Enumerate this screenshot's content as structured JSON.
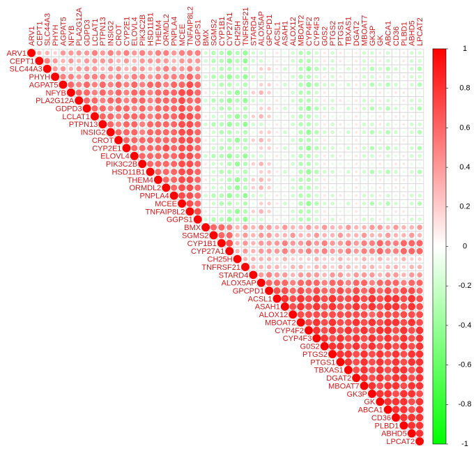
{
  "chart_data": {
    "type": "corrplot",
    "variables": [
      "ARV1",
      "CEPT1",
      "SLC44A3",
      "PHYH",
      "AGPAT5",
      "NFYB",
      "PLA2G12A",
      "GDPD3",
      "LCLAT1",
      "PTPN13",
      "INSIG2",
      "CROT",
      "CYP2E1",
      "ELOVL4",
      "PIK3C2B",
      "HSD11B1",
      "THEM4",
      "ORMDL2",
      "PNPLA4",
      "MCEE",
      "TNFAIP8L2",
      "GGPS1",
      "BMX",
      "SGMS2",
      "CYP1B1",
      "CYP27A1",
      "CH25H",
      "TNFRSF21",
      "STARD4",
      "ALOX5AP",
      "GPCPD1",
      "ACSL1",
      "ASAH1",
      "ALOX12",
      "MBOAT2",
      "CYP4F2",
      "CYP4F3",
      "G0S2",
      "PTGS2",
      "PTGS1",
      "TBXAS1",
      "DGAT2",
      "MBOAT7",
      "GK3P",
      "GK",
      "ABCA1",
      "CD36",
      "PLBD1",
      "ABHD5",
      "LPCAT2"
    ],
    "matrix": [
      [
        1,
        0.3,
        0.3,
        0.2,
        0.4,
        0.4,
        0.4,
        0.4,
        0.5,
        0.4,
        0.5,
        0.4,
        0.5,
        0.4,
        0.5,
        0.4,
        0.5,
        0.5,
        0.4,
        0.5,
        0.5,
        0.5,
        -0.2,
        -0.3,
        -0.3,
        -0.4,
        -0.3,
        -0.4,
        -0.2,
        -0.2,
        -0.1,
        0.1,
        -0.1,
        -0.2,
        -0.3,
        -0.3,
        -0.2,
        0.1,
        -0.2,
        0.1,
        -0.1,
        0.1,
        -0.2,
        -0.2,
        0.1,
        -0.2,
        -0.1,
        0.1,
        -0.2,
        -0.2
      ],
      [
        1,
        0.5,
        0.4,
        0.3,
        0.4,
        0.3,
        0.4,
        0.4,
        0.4,
        0.4,
        0.3,
        0.4,
        0.3,
        0.4,
        0.4,
        0.4,
        0.4,
        0.3,
        0.4,
        0.4,
        0.4,
        -0.2,
        -0.3,
        -0.3,
        -0.4,
        -0.3,
        -0.4,
        -0.2,
        -0.2,
        -0.1,
        0.1,
        -0.1,
        -0.2,
        -0.3,
        -0.3,
        -0.2,
        0.1,
        -0.2,
        0.1,
        -0.1,
        0.1,
        -0.2,
        -0.2,
        0.1,
        -0.2,
        -0.1,
        0.1,
        -0.2,
        -0.2
      ],
      [
        1,
        0.4,
        0.4,
        0.3,
        0.4,
        0.4,
        0.4,
        0.3,
        0.4,
        0.4,
        0.3,
        0.4,
        0.4,
        0.3,
        0.4,
        0.5,
        0.4,
        0.4,
        0.5,
        0.4,
        -0.1,
        -0.2,
        -0.3,
        -0.3,
        -0.2,
        -0.3,
        -0.1,
        0.2,
        0.2,
        0.1,
        -0.2,
        -0.1,
        -0.3,
        -0.4,
        -0.3,
        -0.2,
        -0.2,
        -0.1,
        -0.2,
        0.1,
        -0.2,
        -0.3,
        -0.2,
        -0.3,
        -0.2,
        -0.1,
        -0.2,
        -0.3
      ],
      [
        1,
        0.5,
        0.5,
        0.4,
        0.5,
        0.5,
        0.5,
        0.4,
        0.5,
        0.4,
        0.5,
        0.5,
        0.4,
        0.5,
        0.5,
        0.5,
        0.5,
        0.6,
        0.5,
        -0.2,
        -0.3,
        -0.3,
        -0.4,
        -0.3,
        -0.4,
        -0.2,
        -0.2,
        -0.1,
        0.1,
        -0.1,
        -0.2,
        -0.3,
        -0.3,
        -0.2,
        0.1,
        -0.2,
        0.1,
        -0.1,
        0.1,
        -0.2,
        -0.2,
        0.1,
        -0.2,
        -0.1,
        0.1,
        -0.2,
        -0.2
      ],
      [
        1,
        0.6,
        0.5,
        0.6,
        0.5,
        0.6,
        0.5,
        0.6,
        0.5,
        0.6,
        0.5,
        0.6,
        0.6,
        0.5,
        0.6,
        0.6,
        0.7,
        0.6,
        -0.1,
        -0.2,
        -0.3,
        -0.3,
        -0.2,
        -0.3,
        -0.1,
        0.2,
        0.2,
        0.1,
        -0.2,
        -0.1,
        -0.3,
        -0.4,
        -0.3,
        -0.2,
        -0.2,
        -0.1,
        -0.2,
        0.1,
        -0.2,
        -0.3,
        -0.2,
        -0.3,
        -0.2,
        -0.1,
        -0.2,
        -0.3
      ],
      [
        1,
        0.6,
        0.6,
        0.5,
        0.6,
        0.5,
        0.6,
        0.5,
        0.6,
        0.6,
        0.5,
        0.6,
        0.6,
        0.6,
        0.7,
        0.7,
        0.6,
        0.1,
        -0.2,
        -0.2,
        -0.3,
        -0.4,
        -0.3,
        0.2,
        0.3,
        0.2,
        -0.1,
        -0.1,
        -0.2,
        -0.3,
        -0.3,
        -0.2,
        0.1,
        -0.1,
        -0.1,
        -0.1,
        0.1,
        -0.1,
        -0.1,
        0.1,
        -0.1,
        0.1,
        0.1,
        -0.1,
        -0.1
      ],
      [
        1,
        0.6,
        0.6,
        0.5,
        0.6,
        0.6,
        0.5,
        0.6,
        0.6,
        0.5,
        0.6,
        0.6,
        0.6,
        0.7,
        0.6,
        0.6,
        -0.2,
        -0.3,
        -0.3,
        -0.4,
        -0.3,
        -0.4,
        -0.2,
        -0.2,
        -0.1,
        0.1,
        -0.1,
        -0.2,
        -0.3,
        -0.3,
        -0.2,
        0.1,
        -0.2,
        0.1,
        -0.1,
        0.1,
        -0.2,
        -0.2,
        0.1,
        -0.2,
        -0.1,
        0.1,
        -0.2,
        -0.2
      ],
      [
        1,
        0.6,
        0.6,
        0.5,
        0.6,
        0.6,
        0.5,
        0.6,
        0.5,
        0.6,
        0.6,
        0.6,
        0.7,
        0.6,
        0.6,
        -0.1,
        -0.2,
        -0.3,
        -0.3,
        -0.2,
        -0.3,
        -0.1,
        0.2,
        0.2,
        0.1,
        -0.2,
        -0.1,
        -0.3,
        -0.4,
        -0.3,
        -0.2,
        -0.2,
        -0.1,
        -0.2,
        0.1,
        -0.2,
        -0.3,
        -0.2,
        -0.3,
        -0.2,
        -0.1,
        -0.2,
        -0.3
      ],
      [
        1,
        0.6,
        0.6,
        0.5,
        0.6,
        0.6,
        0.6,
        0.5,
        0.6,
        0.6,
        0.6,
        0.7,
        0.7,
        0.6,
        0.1,
        -0.2,
        -0.2,
        -0.3,
        -0.4,
        -0.3,
        0.2,
        0.3,
        0.2,
        -0.1,
        -0.1,
        -0.2,
        -0.3,
        -0.3,
        -0.2,
        0.1,
        -0.1,
        -0.1,
        -0.1,
        0.1,
        -0.1,
        -0.1,
        0.1,
        -0.1,
        0.1,
        0.1,
        -0.1,
        -0.1
      ],
      [
        1,
        0.6,
        0.5,
        0.6,
        0.6,
        0.5,
        0.6,
        0.6,
        0.6,
        0.6,
        0.7,
        0.7,
        0.6,
        -0.2,
        -0.3,
        -0.3,
        -0.4,
        -0.3,
        -0.4,
        -0.2,
        -0.2,
        -0.1,
        0.1,
        -0.1,
        -0.2,
        -0.3,
        -0.3,
        -0.2,
        0.1,
        -0.2,
        0.1,
        -0.1,
        0.1,
        -0.2,
        -0.2,
        0.1,
        -0.2,
        -0.1,
        0.1,
        -0.2,
        -0.2
      ],
      [
        1,
        0.6,
        0.6,
        0.6,
        0.5,
        0.6,
        0.6,
        0.6,
        0.6,
        0.7,
        0.7,
        0.6,
        -0.1,
        -0.2,
        -0.3,
        -0.3,
        -0.2,
        -0.3,
        -0.1,
        0.2,
        0.2,
        0.1,
        -0.2,
        -0.1,
        -0.3,
        -0.4,
        -0.3,
        -0.2,
        -0.2,
        -0.1,
        -0.2,
        0.1,
        -0.2,
        -0.3,
        -0.2,
        -0.3,
        -0.2,
        -0.1,
        -0.2,
        -0.3
      ],
      [
        1,
        0.6,
        0.6,
        0.6,
        0.6,
        0.6,
        0.6,
        0.6,
        0.7,
        0.7,
        0.6,
        0.1,
        -0.2,
        -0.2,
        -0.3,
        -0.4,
        -0.3,
        0.2,
        0.3,
        0.2,
        -0.1,
        -0.1,
        -0.2,
        -0.3,
        -0.3,
        -0.2,
        0.1,
        -0.1,
        -0.1,
        -0.1,
        0.1,
        -0.1,
        -0.1,
        0.1,
        -0.1,
        0.1,
        0.1,
        -0.1,
        -0.1
      ],
      [
        1,
        0.6,
        0.6,
        0.6,
        0.6,
        0.7,
        0.6,
        0.7,
        0.7,
        0.6,
        -0.1,
        -0.2,
        -0.3,
        -0.3,
        -0.2,
        -0.3,
        -0.1,
        0.2,
        0.2,
        0.1,
        -0.2,
        -0.1,
        -0.3,
        -0.4,
        -0.3,
        -0.2,
        -0.2,
        -0.1,
        -0.2,
        0.1,
        -0.2,
        -0.3,
        -0.2,
        -0.3,
        -0.2,
        -0.1,
        -0.2,
        -0.3
      ],
      [
        1,
        0.6,
        0.6,
        0.6,
        0.6,
        0.6,
        0.7,
        0.7,
        0.6,
        -0.2,
        -0.3,
        -0.3,
        -0.4,
        -0.3,
        -0.4,
        -0.2,
        -0.2,
        -0.1,
        0.1,
        -0.1,
        -0.2,
        -0.3,
        -0.3,
        -0.2,
        0.1,
        -0.2,
        0.1,
        -0.1,
        0.1,
        -0.2,
        -0.2,
        0.1,
        -0.2,
        -0.1,
        0.1,
        -0.2,
        -0.2
      ],
      [
        1,
        0.6,
        0.6,
        0.6,
        0.6,
        0.7,
        0.7,
        0.6,
        0.1,
        -0.2,
        -0.2,
        -0.3,
        -0.4,
        -0.3,
        0.2,
        0.3,
        0.2,
        -0.1,
        -0.1,
        -0.2,
        -0.3,
        -0.3,
        -0.2,
        0.1,
        -0.1,
        -0.1,
        -0.1,
        0.1,
        -0.1,
        -0.1,
        0.1,
        -0.1,
        0.1,
        0.1,
        -0.1,
        -0.1
      ],
      [
        1,
        0.6,
        0.6,
        0.6,
        0.7,
        0.7,
        0.6,
        -0.1,
        -0.2,
        -0.3,
        -0.3,
        -0.2,
        -0.3,
        -0.1,
        0.2,
        0.2,
        0.1,
        -0.2,
        -0.1,
        -0.3,
        -0.4,
        -0.3,
        -0.2,
        -0.2,
        -0.1,
        -0.2,
        0.1,
        -0.2,
        -0.3,
        -0.2,
        -0.3,
        -0.2,
        -0.1,
        -0.2,
        -0.3
      ],
      [
        1,
        0.6,
        0.6,
        0.7,
        0.7,
        0.6,
        0.1,
        -0.2,
        -0.2,
        -0.3,
        -0.4,
        -0.3,
        0.2,
        0.3,
        0.2,
        -0.1,
        -0.1,
        -0.2,
        -0.3,
        -0.3,
        -0.2,
        0.1,
        -0.1,
        -0.1,
        -0.1,
        0.1,
        -0.1,
        -0.1,
        0.1,
        -0.1,
        0.1,
        0.1,
        -0.1,
        -0.1
      ],
      [
        1,
        0.6,
        0.7,
        0.7,
        0.6,
        0.1,
        -0.2,
        -0.2,
        -0.3,
        -0.4,
        -0.3,
        0.2,
        0.3,
        0.2,
        -0.1,
        -0.1,
        -0.2,
        -0.3,
        -0.3,
        -0.2,
        0.1,
        -0.1,
        -0.1,
        -0.1,
        0.1,
        -0.1,
        -0.1,
        0.1,
        -0.1,
        0.1,
        0.1,
        -0.1,
        -0.1
      ],
      [
        1,
        0.7,
        0.7,
        0.6,
        -0.2,
        -0.3,
        -0.3,
        -0.4,
        -0.3,
        -0.4,
        -0.2,
        -0.2,
        -0.1,
        0.1,
        -0.1,
        -0.2,
        -0.3,
        -0.3,
        -0.2,
        0.1,
        -0.2,
        0.1,
        -0.1,
        0.1,
        -0.2,
        -0.2,
        0.1,
        -0.2,
        -0.1,
        0.1,
        -0.2,
        -0.2
      ],
      [
        1,
        0.7,
        0.6,
        -0.1,
        -0.2,
        -0.3,
        -0.3,
        -0.2,
        -0.3,
        -0.1,
        0.2,
        0.2,
        0.1,
        -0.2,
        -0.1,
        -0.3,
        -0.4,
        -0.3,
        -0.2,
        -0.2,
        -0.1,
        -0.2,
        0.1,
        -0.2,
        -0.3,
        -0.2,
        -0.3,
        -0.2,
        -0.1,
        -0.2,
        -0.3
      ],
      [
        1,
        0.7,
        0.1,
        -0.2,
        -0.2,
        -0.3,
        -0.4,
        -0.3,
        0.2,
        0.3,
        0.2,
        -0.1,
        -0.1,
        -0.2,
        -0.3,
        -0.3,
        -0.2,
        0.1,
        -0.1,
        -0.1,
        -0.1,
        0.1,
        -0.1,
        -0.1,
        0.1,
        -0.1,
        0.1,
        0.1,
        -0.1,
        -0.1
      ],
      [
        1,
        -0.2,
        -0.3,
        -0.3,
        -0.4,
        -0.3,
        -0.4,
        -0.2,
        -0.2,
        -0.1,
        0.1,
        -0.1,
        -0.2,
        -0.3,
        -0.3,
        -0.2,
        0.1,
        -0.2,
        0.1,
        -0.1,
        0.1,
        -0.2,
        -0.2,
        0.1,
        -0.2,
        -0.1,
        0.1,
        -0.2,
        -0.2
      ],
      [
        1,
        0.6,
        0.6,
        0.5,
        0.3,
        0.4,
        0.3,
        0.4,
        0.4,
        0.3,
        0.4,
        0.3,
        0.3,
        0.4,
        0.3,
        0.4,
        0.3,
        0.3,
        0.4,
        0.3,
        0.3,
        0.4,
        0.4,
        0.3,
        0.4,
        0.3,
        0.3,
        0.4
      ],
      [
        1,
        0.6,
        0.6,
        0.3,
        0.4,
        0.3,
        0.4,
        0.4,
        0.3,
        0.3,
        0.4,
        0.3,
        0.3,
        0.4,
        0.3,
        0.3,
        0.4,
        0.3,
        0.3,
        0.4,
        0.3,
        0.3,
        0.4,
        0.3,
        0.3,
        0.4,
        0.3
      ],
      [
        1,
        0.7,
        0.3,
        0.4,
        0.3,
        0.4,
        0.4,
        0.4,
        0.5,
        0.4,
        0.4,
        0.5,
        0.4,
        0.5,
        0.4,
        0.4,
        0.5,
        0.4,
        0.5,
        0.5,
        0.6,
        0.5,
        0.5,
        0.6,
        0.6,
        0.6
      ],
      [
        1,
        0.3,
        0.4,
        0.3,
        0.4,
        0.4,
        0.4,
        0.5,
        0.4,
        0.4,
        0.5,
        0.4,
        0.5,
        0.4,
        0.4,
        0.5,
        0.4,
        0.5,
        0.5,
        0.6,
        0.5,
        0.5,
        0.6,
        0.6,
        0.6
      ],
      [
        1,
        0.3,
        0.3,
        0.3,
        0.3,
        0.2,
        0.3,
        0.2,
        0.2,
        0.2,
        0.3,
        0.2,
        0.2,
        0.3,
        0.2,
        0.2,
        0.3,
        0.2,
        0.3,
        0.2,
        0.2,
        0.3,
        0.2,
        0.2
      ],
      [
        1,
        0.3,
        0.3,
        0.3,
        0.3,
        0.2,
        0.3,
        0.3,
        0.2,
        0.3,
        0.3,
        0.2,
        0.3,
        0.3,
        0.2,
        0.3,
        0.3,
        0.2,
        0.3,
        0.3,
        0.2,
        0.3,
        0.3
      ],
      [
        1,
        0.4,
        0.5,
        0.4,
        0.4,
        0.3,
        0.4,
        0.4,
        0.4,
        0.3,
        0.4,
        0.4,
        0.3,
        0.4,
        0.4,
        0.4,
        0.3,
        0.4,
        0.4,
        0.3,
        0.4,
        0.4
      ],
      [
        1,
        0.6,
        0.6,
        0.6,
        0.5,
        0.6,
        0.6,
        0.6,
        0.5,
        0.6,
        0.6,
        0.5,
        0.6,
        0.6,
        0.5,
        0.6,
        0.6,
        0.6,
        0.5,
        0.6,
        0.6
      ],
      [
        1,
        0.7,
        0.7,
        0.6,
        0.7,
        0.6,
        0.7,
        0.6,
        0.6,
        0.7,
        0.6,
        0.7,
        0.6,
        0.7,
        0.6,
        0.7,
        0.6,
        0.7,
        0.7,
        0.6
      ],
      [
        1,
        0.8,
        0.7,
        0.8,
        0.7,
        0.8,
        0.7,
        0.8,
        0.7,
        0.7,
        0.8,
        0.7,
        0.8,
        0.7,
        0.8,
        0.8,
        0.7,
        0.8,
        0.7
      ],
      [
        1,
        0.7,
        0.8,
        0.7,
        0.8,
        0.7,
        0.8,
        0.7,
        0.7,
        0.8,
        0.7,
        0.8,
        0.7,
        0.8,
        0.8,
        0.7,
        0.8,
        0.7
      ],
      [
        1,
        0.7,
        0.7,
        0.7,
        0.7,
        0.7,
        0.7,
        0.7,
        0.7,
        0.7,
        0.6,
        0.7,
        0.7,
        0.7,
        0.7,
        0.7,
        0.7
      ],
      [
        1,
        0.7,
        0.8,
        0.7,
        0.8,
        0.7,
        0.7,
        0.8,
        0.7,
        0.8,
        0.7,
        0.8,
        0.8,
        0.7,
        0.8,
        0.7
      ],
      [
        1,
        0.8,
        0.7,
        0.8,
        0.7,
        0.8,
        0.7,
        0.8,
        0.7,
        0.8,
        0.8,
        0.7,
        0.8,
        0.7,
        0.8
      ],
      [
        1,
        0.8,
        0.7,
        0.8,
        0.7,
        0.8,
        0.7,
        0.8,
        0.7,
        0.8,
        0.7,
        0.8,
        0.7,
        0.8
      ],
      [
        1,
        0.8,
        0.8,
        0.7,
        0.8,
        0.7,
        0.8,
        0.7,
        0.8,
        0.7,
        0.8,
        0.7,
        0.8
      ],
      [
        1,
        0.8,
        0.8,
        0.7,
        0.8,
        0.7,
        0.8,
        0.7,
        0.8,
        0.7,
        0.8,
        0.8
      ],
      [
        1,
        0.8,
        0.7,
        0.8,
        0.7,
        0.8,
        0.7,
        0.8,
        0.7,
        0.8,
        0.8
      ],
      [
        1,
        0.7,
        0.8,
        0.7,
        0.8,
        0.7,
        0.8,
        0.8,
        0.7,
        0.8
      ],
      [
        1,
        0.8,
        0.7,
        0.8,
        0.7,
        0.8,
        0.8,
        0.7,
        0.8
      ],
      [
        1,
        0.8,
        0.7,
        0.8,
        0.8,
        0.7,
        0.8,
        0.8
      ],
      [
        1,
        0.8,
        0.8,
        0.7,
        0.8,
        0.8,
        0.7
      ],
      [
        1,
        0.8,
        0.8,
        0.8,
        0.7,
        0.8
      ],
      [
        1,
        0.8,
        0.8,
        0.7,
        0.8
      ],
      [
        1,
        0.8,
        0.8,
        0.8
      ],
      [
        1,
        0.8,
        0.8
      ],
      [
        1,
        0.8
      ],
      [
        1
      ]
    ],
    "colors": [
      "#00ff00",
      "#ffffff",
      "#ff0000"
    ],
    "clim": [
      -1,
      1
    ],
    "cticks": [
      1,
      0.8,
      0.6,
      0.4,
      0.2,
      0,
      -0.2,
      -0.4,
      -0.6,
      -0.8,
      -1
    ],
    "grid": true
  }
}
